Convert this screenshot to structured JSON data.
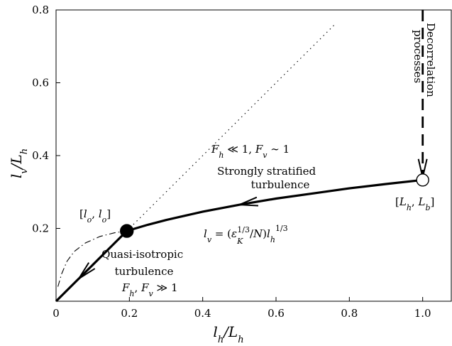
{
  "chart_data": {
    "type": "line",
    "title": "",
    "xlabel": "l_h/L_h",
    "ylabel": "l_v/L_h",
    "xlim": [
      0,
      1.08
    ],
    "ylim": [
      0,
      0.8
    ],
    "xticks": [
      "0",
      "0.2",
      "0.4",
      "0.6",
      "0.8",
      "1.0"
    ],
    "yticks": [
      "0.2",
      "0.4",
      "0.6",
      "0.8"
    ],
    "xtick_values": [
      0,
      0.2,
      0.4,
      0.6,
      0.8,
      1.0
    ],
    "ytick_values": [
      0.2,
      0.4,
      0.6,
      0.8
    ],
    "grid": false,
    "series": [
      {
        "style": "solid-thick",
        "x": [
          0,
          0.05,
          0.1,
          0.15,
          0.193
        ],
        "y": [
          0,
          0.05,
          0.1,
          0.15,
          0.193
        ]
      },
      {
        "style": "solid-thick",
        "x": [
          0.193,
          0.25,
          0.3,
          0.4,
          0.5,
          0.6,
          0.7,
          0.8,
          0.9,
          1.0
        ],
        "y": [
          0.193,
          0.21,
          0.223,
          0.246,
          0.265,
          0.282,
          0.296,
          0.31,
          0.322,
          0.333
        ]
      },
      {
        "style": "dotted",
        "x": [
          0.193,
          0.28,
          0.4,
          0.5,
          0.6,
          0.7,
          0.76
        ],
        "y": [
          0.193,
          0.28,
          0.4,
          0.5,
          0.6,
          0.7,
          0.76
        ]
      },
      {
        "style": "dash-dot",
        "x": [
          0.005,
          0.015,
          0.03,
          0.05,
          0.08,
          0.12,
          0.16,
          0.193
        ],
        "y": [
          0.04,
          0.075,
          0.11,
          0.137,
          0.16,
          0.178,
          0.188,
          0.193
        ]
      },
      {
        "style": "dashed-thick",
        "x": [
          1.0,
          1.0
        ],
        "y": [
          0.8,
          0.335
        ]
      }
    ],
    "markers": [
      {
        "x": 0.193,
        "y": 0.193,
        "fill": "filled",
        "label": "[l_o, l_o]"
      },
      {
        "x": 1.0,
        "y": 0.333,
        "fill": "open",
        "label": "[L_h, L_b]"
      }
    ],
    "annotations": {
      "decorrelation": [
        "Decorrelation",
        "processes"
      ],
      "strat_regime": "F_h ≪ 1, F_v ∼ 1",
      "strat_title": [
        "Strongly stratified",
        "turbulence"
      ],
      "scaling_law": "l_v = (ε_K^{1/3}/N) l_h^{1/3}",
      "iso_title": [
        "Quasi-isotropic",
        "turbulence"
      ],
      "iso_regime": "F_h, F_v ≫ 1"
    }
  }
}
